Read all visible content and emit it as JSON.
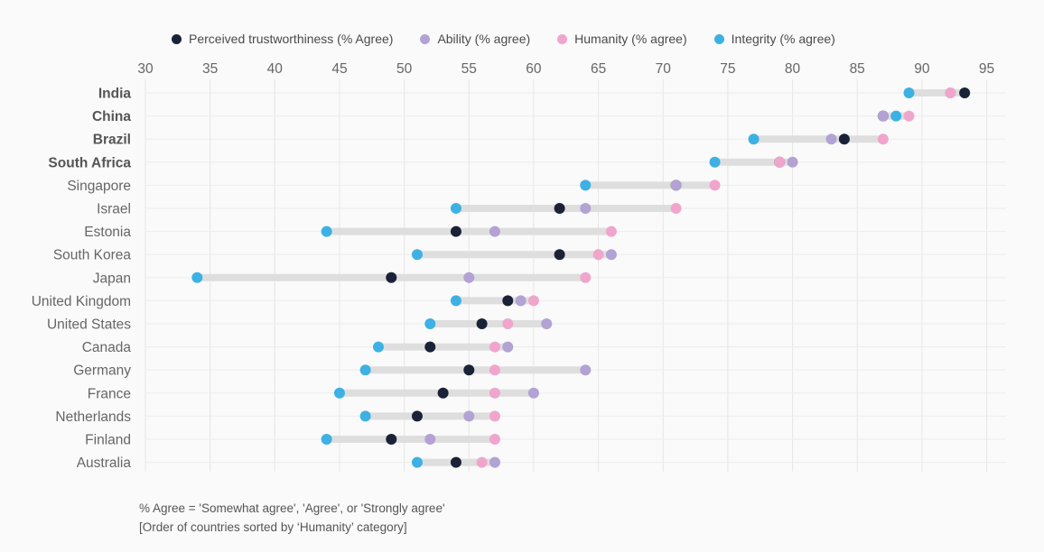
{
  "chart_data": {
    "type": "dot-range",
    "x_ticks": [
      30,
      35,
      40,
      45,
      50,
      55,
      60,
      65,
      70,
      75,
      80,
      85,
      90,
      95
    ],
    "xlim": [
      30,
      96.5
    ],
    "grid": true,
    "legend_position": "top",
    "series": [
      {
        "key": "trust",
        "name": "Perceived trustworthiness (% Agree)",
        "color": "#1a2238"
      },
      {
        "key": "ability",
        "name": "Ability (% agree)",
        "color": "#b3a2d4"
      },
      {
        "key": "humanity",
        "name": "Humanity (% agree)",
        "color": "#f0a6cc"
      },
      {
        "key": "integrity",
        "name": "Integrity (% agree)",
        "color": "#3db1e3"
      }
    ],
    "draw_order": [
      "trust",
      "ability",
      "humanity",
      "integrity"
    ],
    "countries": [
      {
        "name": "India",
        "bold": true,
        "trust": 93.3,
        "ability": 92.2,
        "humanity": 92.2,
        "integrity": 89
      },
      {
        "name": "China",
        "bold": true,
        "trust": 87,
        "ability": 87,
        "humanity": 89,
        "integrity": 88
      },
      {
        "name": "Brazil",
        "bold": true,
        "trust": 84,
        "ability": 83,
        "humanity": 87,
        "integrity": 77
      },
      {
        "name": "South Africa",
        "bold": true,
        "trust": 79,
        "ability": 80,
        "humanity": 79,
        "integrity": 74
      },
      {
        "name": "Singapore",
        "bold": false,
        "trust": 71,
        "ability": 71,
        "humanity": 74,
        "integrity": 64
      },
      {
        "name": "Israel",
        "bold": false,
        "trust": 62,
        "ability": 64,
        "humanity": 71,
        "integrity": 54
      },
      {
        "name": "Estonia",
        "bold": false,
        "trust": 54,
        "ability": 57,
        "humanity": 66,
        "integrity": 44
      },
      {
        "name": "South Korea",
        "bold": false,
        "trust": 62,
        "ability": 66,
        "humanity": 65,
        "integrity": 51
      },
      {
        "name": "Japan",
        "bold": false,
        "trust": 49,
        "ability": 55,
        "humanity": 64,
        "integrity": 34
      },
      {
        "name": "United Kingdom",
        "bold": false,
        "trust": 58,
        "ability": 59,
        "humanity": 60,
        "integrity": 54
      },
      {
        "name": "United States",
        "bold": false,
        "trust": 56,
        "ability": 61,
        "humanity": 58,
        "integrity": 52
      },
      {
        "name": "Canada",
        "bold": false,
        "trust": 52,
        "ability": 58,
        "humanity": 57,
        "integrity": 48
      },
      {
        "name": "Germany",
        "bold": false,
        "trust": 55,
        "ability": 64,
        "humanity": 57,
        "integrity": 47
      },
      {
        "name": "France",
        "bold": false,
        "trust": 53,
        "ability": 60,
        "humanity": 57,
        "integrity": 45
      },
      {
        "name": "Netherlands",
        "bold": false,
        "trust": 51,
        "ability": 55,
        "humanity": 57,
        "integrity": 47
      },
      {
        "name": "Finland",
        "bold": false,
        "trust": 49,
        "ability": 52,
        "humanity": 57,
        "integrity": 44
      },
      {
        "name": "Australia",
        "bold": false,
        "trust": 54,
        "ability": 57,
        "humanity": 56,
        "integrity": 51
      }
    ],
    "notes": [
      "% Agree = 'Somewhat agree', 'Agree', or 'Strongly agree'",
      "[Order of countries sorted by ‘Humanity’ category]"
    ]
  }
}
